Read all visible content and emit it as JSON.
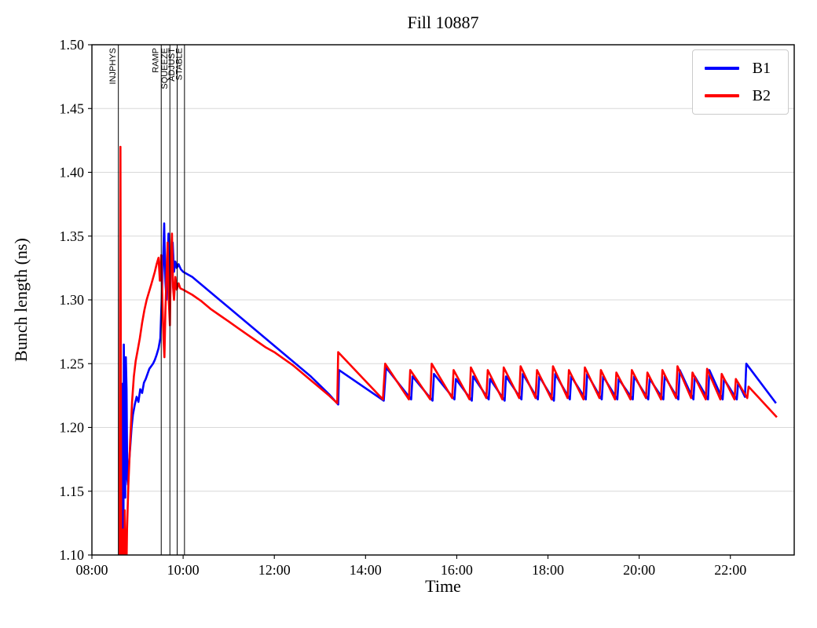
{
  "chart_data": {
    "type": "line",
    "title": "Fill 10887",
    "xlabel": "Time",
    "ylabel": "Bunch length (ns)",
    "xlim_hours": [
      8.0,
      23.4
    ],
    "ylim": [
      1.1,
      1.5
    ],
    "grid": {
      "horizontal": true,
      "vertical": false,
      "color": "#d8d8d8"
    },
    "x_ticks": [
      {
        "t": 8,
        "label": "08:00"
      },
      {
        "t": 10,
        "label": "10:00"
      },
      {
        "t": 12,
        "label": "12:00"
      },
      {
        "t": 14,
        "label": "14:00"
      },
      {
        "t": 16,
        "label": "16:00"
      },
      {
        "t": 18,
        "label": "18:00"
      },
      {
        "t": 20,
        "label": "20:00"
      },
      {
        "t": 22,
        "label": "22:00"
      }
    ],
    "y_ticks": [
      {
        "v": 1.1,
        "label": "1.10"
      },
      {
        "v": 1.15,
        "label": "1.15"
      },
      {
        "v": 1.2,
        "label": "1.20"
      },
      {
        "v": 1.25,
        "label": "1.25"
      },
      {
        "v": 1.3,
        "label": "1.30"
      },
      {
        "v": 1.35,
        "label": "1.35"
      },
      {
        "v": 1.4,
        "label": "1.40"
      },
      {
        "v": 1.45,
        "label": "1.45"
      },
      {
        "v": 1.5,
        "label": "1.50"
      }
    ],
    "legend": {
      "position": "upper right",
      "entries": [
        {
          "label": "B1",
          "color": "#0000ff"
        },
        {
          "label": "B2",
          "color": "#ff0000"
        }
      ]
    },
    "beam_modes": [
      {
        "t": 8.58,
        "label": "INJPHYS"
      },
      {
        "t": 9.52,
        "label": "RAMP"
      },
      {
        "t": 9.71,
        "label": "SQUEEZE"
      },
      {
        "t": 9.87,
        "label": "ADJUST"
      },
      {
        "t": 10.03,
        "label": "STABLE"
      }
    ],
    "series": [
      {
        "name": "B1",
        "color": "#0000ff",
        "points": [
          [
            8.665,
            1.235
          ],
          [
            8.672,
            1.1
          ],
          [
            8.68,
            1.08
          ],
          [
            8.69,
            1.09
          ],
          [
            8.7,
            1.265
          ],
          [
            8.715,
            1.21
          ],
          [
            8.73,
            1.145
          ],
          [
            8.745,
            1.255
          ],
          [
            8.76,
            1.23
          ],
          [
            8.775,
            1.16
          ],
          [
            8.79,
            1.155
          ],
          [
            8.81,
            1.17
          ],
          [
            8.84,
            1.185
          ],
          [
            8.87,
            1.2
          ],
          [
            8.9,
            1.21
          ],
          [
            8.94,
            1.218
          ],
          [
            8.98,
            1.224
          ],
          [
            9.02,
            1.22
          ],
          [
            9.06,
            1.23
          ],
          [
            9.1,
            1.227
          ],
          [
            9.14,
            1.235
          ],
          [
            9.18,
            1.238
          ],
          [
            9.22,
            1.242
          ],
          [
            9.26,
            1.246
          ],
          [
            9.3,
            1.248
          ],
          [
            9.34,
            1.25
          ],
          [
            9.38,
            1.253
          ],
          [
            9.42,
            1.257
          ],
          [
            9.46,
            1.262
          ],
          [
            9.5,
            1.27
          ],
          [
            9.53,
            1.3
          ],
          [
            9.56,
            1.33
          ],
          [
            9.585,
            1.36
          ],
          [
            9.61,
            1.315
          ],
          [
            9.635,
            1.3
          ],
          [
            9.66,
            1.33
          ],
          [
            9.68,
            1.352
          ],
          [
            9.7,
            1.322
          ],
          [
            9.72,
            1.305
          ],
          [
            9.745,
            1.335
          ],
          [
            9.77,
            1.345
          ],
          [
            9.8,
            1.322
          ],
          [
            9.83,
            1.33
          ],
          [
            9.86,
            1.325
          ],
          [
            9.9,
            1.328
          ],
          [
            9.95,
            1.324
          ],
          [
            10.0,
            1.322
          ],
          [
            10.2,
            1.318
          ],
          [
            10.4,
            1.312
          ],
          [
            10.6,
            1.306
          ],
          [
            10.8,
            1.3
          ],
          [
            11.0,
            1.294
          ],
          [
            11.2,
            1.288
          ],
          [
            11.4,
            1.282
          ],
          [
            11.6,
            1.276
          ],
          [
            11.8,
            1.27
          ],
          [
            12.0,
            1.264
          ],
          [
            12.2,
            1.258
          ],
          [
            12.4,
            1.252
          ],
          [
            12.6,
            1.246
          ],
          [
            12.8,
            1.24
          ],
          [
            13.0,
            1.233
          ],
          [
            13.2,
            1.226
          ],
          [
            13.4,
            1.218
          ],
          [
            13.42,
            1.245
          ],
          [
            14.4,
            1.221
          ],
          [
            14.45,
            1.247
          ],
          [
            15.0,
            1.222
          ],
          [
            15.03,
            1.24
          ],
          [
            15.47,
            1.221
          ],
          [
            15.5,
            1.242
          ],
          [
            15.95,
            1.222
          ],
          [
            15.98,
            1.238
          ],
          [
            16.33,
            1.221
          ],
          [
            16.36,
            1.24
          ],
          [
            16.7,
            1.222
          ],
          [
            16.73,
            1.238
          ],
          [
            17.05,
            1.221
          ],
          [
            17.08,
            1.24
          ],
          [
            17.42,
            1.222
          ],
          [
            17.45,
            1.242
          ],
          [
            17.78,
            1.222
          ],
          [
            17.81,
            1.24
          ],
          [
            18.13,
            1.221
          ],
          [
            18.16,
            1.242
          ],
          [
            18.48,
            1.222
          ],
          [
            18.51,
            1.24
          ],
          [
            18.83,
            1.222
          ],
          [
            18.86,
            1.242
          ],
          [
            19.18,
            1.222
          ],
          [
            19.21,
            1.24
          ],
          [
            19.52,
            1.222
          ],
          [
            19.55,
            1.238
          ],
          [
            19.86,
            1.222
          ],
          [
            19.89,
            1.24
          ],
          [
            20.2,
            1.222
          ],
          [
            20.23,
            1.238
          ],
          [
            20.53,
            1.222
          ],
          [
            20.56,
            1.24
          ],
          [
            20.86,
            1.222
          ],
          [
            20.89,
            1.245
          ],
          [
            21.19,
            1.222
          ],
          [
            21.22,
            1.24
          ],
          [
            21.51,
            1.222
          ],
          [
            21.54,
            1.245
          ],
          [
            21.83,
            1.222
          ],
          [
            21.86,
            1.238
          ],
          [
            22.14,
            1.222
          ],
          [
            22.17,
            1.235
          ],
          [
            22.32,
            1.224
          ],
          [
            22.35,
            1.25
          ],
          [
            23.0,
            1.219
          ]
        ]
      },
      {
        "name": "B2",
        "color": "#ff0000",
        "points": [
          [
            8.6,
            1.09
          ],
          [
            8.615,
            1.25
          ],
          [
            8.625,
            1.42
          ],
          [
            8.635,
            1.22
          ],
          [
            8.645,
            1.09
          ],
          [
            8.66,
            1.07
          ],
          [
            8.68,
            1.12
          ],
          [
            8.7,
            1.08
          ],
          [
            8.72,
            1.135
          ],
          [
            8.735,
            1.09
          ],
          [
            8.75,
            1.07
          ],
          [
            8.77,
            1.12
          ],
          [
            8.8,
            1.155
          ],
          [
            8.84,
            1.19
          ],
          [
            8.88,
            1.22
          ],
          [
            8.92,
            1.24
          ],
          [
            8.96,
            1.252
          ],
          [
            9.0,
            1.26
          ],
          [
            9.05,
            1.27
          ],
          [
            9.1,
            1.282
          ],
          [
            9.15,
            1.292
          ],
          [
            9.2,
            1.3
          ],
          [
            9.25,
            1.306
          ],
          [
            9.3,
            1.312
          ],
          [
            9.34,
            1.317
          ],
          [
            9.38,
            1.322
          ],
          [
            9.42,
            1.328
          ],
          [
            9.46,
            1.333
          ],
          [
            9.49,
            1.315
          ],
          [
            9.52,
            1.335
          ],
          [
            9.545,
            1.3
          ],
          [
            9.57,
            1.27
          ],
          [
            9.59,
            1.255
          ],
          [
            9.61,
            1.29
          ],
          [
            9.635,
            1.32
          ],
          [
            9.66,
            1.345
          ],
          [
            9.685,
            1.3
          ],
          [
            9.71,
            1.28
          ],
          [
            9.73,
            1.33
          ],
          [
            9.755,
            1.352
          ],
          [
            9.78,
            1.31
          ],
          [
            9.8,
            1.3
          ],
          [
            9.83,
            1.318
          ],
          [
            9.86,
            1.308
          ],
          [
            9.9,
            1.313
          ],
          [
            9.94,
            1.309
          ],
          [
            10.0,
            1.308
          ],
          [
            10.2,
            1.304
          ],
          [
            10.4,
            1.299
          ],
          [
            10.6,
            1.293
          ],
          [
            10.8,
            1.288
          ],
          [
            11.0,
            1.283
          ],
          [
            11.2,
            1.278
          ],
          [
            11.4,
            1.273
          ],
          [
            11.6,
            1.268
          ],
          [
            11.8,
            1.263
          ],
          [
            12.0,
            1.259
          ],
          [
            12.2,
            1.254
          ],
          [
            12.4,
            1.249
          ],
          [
            12.6,
            1.243
          ],
          [
            12.8,
            1.237
          ],
          [
            13.0,
            1.231
          ],
          [
            13.2,
            1.225
          ],
          [
            13.38,
            1.219
          ],
          [
            13.4,
            1.259
          ],
          [
            14.38,
            1.222
          ],
          [
            14.43,
            1.25
          ],
          [
            14.95,
            1.222
          ],
          [
            14.98,
            1.245
          ],
          [
            15.42,
            1.222
          ],
          [
            15.45,
            1.25
          ],
          [
            15.9,
            1.223
          ],
          [
            15.93,
            1.245
          ],
          [
            16.28,
            1.222
          ],
          [
            16.31,
            1.247
          ],
          [
            16.65,
            1.223
          ],
          [
            16.68,
            1.245
          ],
          [
            17.0,
            1.222
          ],
          [
            17.03,
            1.247
          ],
          [
            17.37,
            1.223
          ],
          [
            17.4,
            1.248
          ],
          [
            17.73,
            1.223
          ],
          [
            17.76,
            1.245
          ],
          [
            18.08,
            1.222
          ],
          [
            18.11,
            1.248
          ],
          [
            18.43,
            1.223
          ],
          [
            18.46,
            1.245
          ],
          [
            18.78,
            1.222
          ],
          [
            18.81,
            1.247
          ],
          [
            19.13,
            1.223
          ],
          [
            19.16,
            1.245
          ],
          [
            19.47,
            1.222
          ],
          [
            19.5,
            1.243
          ],
          [
            19.81,
            1.222
          ],
          [
            19.84,
            1.245
          ],
          [
            20.15,
            1.223
          ],
          [
            20.18,
            1.243
          ],
          [
            20.48,
            1.222
          ],
          [
            20.51,
            1.245
          ],
          [
            20.81,
            1.223
          ],
          [
            20.84,
            1.248
          ],
          [
            21.14,
            1.223
          ],
          [
            21.17,
            1.243
          ],
          [
            21.46,
            1.222
          ],
          [
            21.49,
            1.246
          ],
          [
            21.78,
            1.222
          ],
          [
            21.81,
            1.242
          ],
          [
            22.09,
            1.222
          ],
          [
            22.12,
            1.238
          ],
          [
            22.37,
            1.223
          ],
          [
            22.4,
            1.232
          ],
          [
            23.02,
            1.208
          ]
        ]
      }
    ]
  }
}
